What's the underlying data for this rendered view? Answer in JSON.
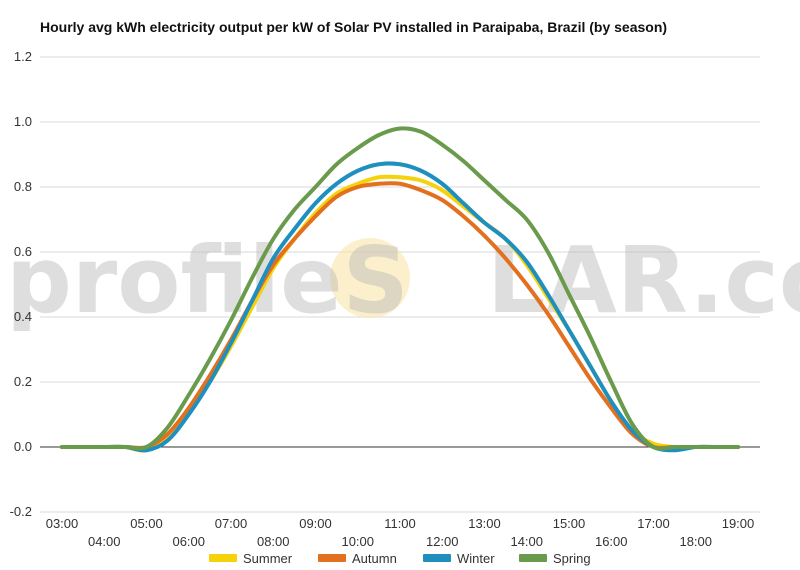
{
  "title": "Hourly avg kWh electricity output per kW of Solar PV installed in Paraipaba, Brazil (by season)",
  "watermark": {
    "pre": "profileS",
    "o": "O",
    "post": "LAR.com"
  },
  "colors": {
    "Summer": "#f5d20a",
    "Autumn": "#e2701e",
    "Winter": "#1f8fc0",
    "Spring": "#6a9b4c",
    "grid": "#d9d9d9",
    "zero_line": "#333333",
    "sun": "#f8e6a8"
  },
  "chart_data": {
    "type": "line",
    "title": "Hourly avg kWh electricity output per kW of Solar PV installed in Paraipaba, Brazil (by season)",
    "x_ticks": [
      "03:00",
      "04:00",
      "05:00",
      "06:00",
      "07:00",
      "08:00",
      "09:00",
      "10:00",
      "11:00",
      "12:00",
      "13:00",
      "14:00",
      "15:00",
      "16:00",
      "17:00",
      "18:00",
      "19:00"
    ],
    "y_ticks": [
      "-0.2",
      "0.0",
      "0.2",
      "0.4",
      "0.6",
      "0.8",
      "1.0",
      "1.2"
    ],
    "ylim": [
      -0.2,
      1.2
    ],
    "grid": true,
    "legend_position": "bottom",
    "x": [
      "03:00",
      "03:30",
      "04:00",
      "04:30",
      "05:00",
      "05:30",
      "06:00",
      "06:30",
      "07:00",
      "07:30",
      "08:00",
      "08:30",
      "09:00",
      "09:30",
      "10:00",
      "10:30",
      "11:00",
      "11:30",
      "12:00",
      "12:30",
      "13:00",
      "13:30",
      "14:00",
      "14:30",
      "15:00",
      "15:30",
      "16:00",
      "16:30",
      "17:00",
      "17:30",
      "18:00",
      "18:30",
      "19:00"
    ],
    "series": [
      {
        "name": "Summer",
        "values": [
          0.0,
          0.0,
          0.0,
          0.0,
          -0.01,
          0.03,
          0.11,
          0.2,
          0.31,
          0.43,
          0.55,
          0.64,
          0.72,
          0.78,
          0.81,
          0.83,
          0.83,
          0.82,
          0.79,
          0.74,
          0.69,
          0.64,
          0.56,
          0.46,
          0.36,
          0.25,
          0.14,
          0.05,
          0.01,
          0.0,
          0.0,
          0.0,
          0.0
        ]
      },
      {
        "name": "Autumn",
        "values": [
          0.0,
          0.0,
          0.0,
          0.0,
          0.0,
          0.04,
          0.12,
          0.22,
          0.33,
          0.45,
          0.56,
          0.64,
          0.71,
          0.77,
          0.8,
          0.81,
          0.81,
          0.79,
          0.76,
          0.71,
          0.65,
          0.58,
          0.5,
          0.41,
          0.31,
          0.21,
          0.12,
          0.04,
          0.0,
          0.0,
          0.0,
          0.0,
          0.0
        ]
      },
      {
        "name": "Winter",
        "values": [
          0.0,
          0.0,
          0.0,
          0.0,
          -0.01,
          0.02,
          0.1,
          0.2,
          0.32,
          0.45,
          0.58,
          0.67,
          0.75,
          0.81,
          0.85,
          0.87,
          0.87,
          0.85,
          0.81,
          0.75,
          0.69,
          0.64,
          0.57,
          0.47,
          0.36,
          0.25,
          0.14,
          0.05,
          0.0,
          -0.01,
          0.0,
          0.0,
          0.0
        ]
      },
      {
        "name": "Spring",
        "values": [
          0.0,
          0.0,
          0.0,
          0.0,
          0.0,
          0.06,
          0.16,
          0.27,
          0.39,
          0.52,
          0.64,
          0.73,
          0.8,
          0.87,
          0.92,
          0.96,
          0.98,
          0.97,
          0.93,
          0.88,
          0.82,
          0.76,
          0.7,
          0.6,
          0.47,
          0.34,
          0.2,
          0.07,
          0.0,
          0.0,
          0.0,
          0.0,
          0.0
        ]
      }
    ]
  },
  "legend": [
    {
      "name": "Summer",
      "color": "#f5d20a"
    },
    {
      "name": "Autumn",
      "color": "#e2701e"
    },
    {
      "name": "Winter",
      "color": "#1f8fc0"
    },
    {
      "name": "Spring",
      "color": "#6a9b4c"
    }
  ]
}
